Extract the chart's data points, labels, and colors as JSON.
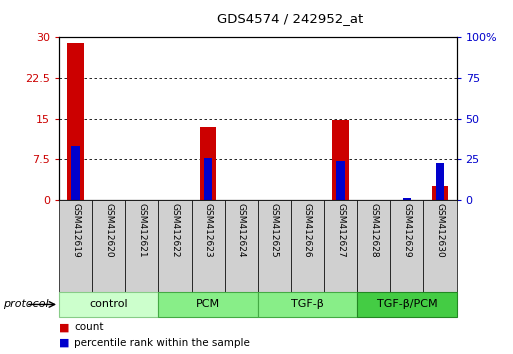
{
  "title": "GDS4574 / 242952_at",
  "samples": [
    "GSM412619",
    "GSM412620",
    "GSM412621",
    "GSM412622",
    "GSM412623",
    "GSM412624",
    "GSM412625",
    "GSM412626",
    "GSM412627",
    "GSM412628",
    "GSM412629",
    "GSM412630"
  ],
  "counts": [
    29.0,
    0.0,
    0.0,
    0.0,
    13.5,
    0.0,
    0.0,
    0.0,
    14.8,
    0.0,
    0.0,
    2.5
  ],
  "percentile_ranks": [
    33.0,
    0.0,
    0.0,
    0.0,
    26.0,
    0.0,
    0.0,
    0.0,
    24.0,
    0.0,
    1.5,
    23.0
  ],
  "count_color": "#cc0000",
  "percentile_color": "#0000cc",
  "ylim_left": [
    0,
    30
  ],
  "ylim_right": [
    0,
    100
  ],
  "yticks_left": [
    0,
    7.5,
    15,
    22.5,
    30
  ],
  "ytick_labels_left": [
    "0",
    "7.5",
    "15",
    "22.5",
    "30"
  ],
  "yticks_right": [
    0,
    25,
    50,
    75,
    100
  ],
  "ytick_labels_right": [
    "0",
    "25",
    "50",
    "75",
    "100%"
  ],
  "groups": [
    {
      "label": "control",
      "size": 3,
      "color": "#ccffcc",
      "edge_color": "#88cc88"
    },
    {
      "label": "PCM",
      "size": 3,
      "color": "#88ee88",
      "edge_color": "#44aa44"
    },
    {
      "label": "TGF-β",
      "size": 3,
      "color": "#88ee88",
      "edge_color": "#44aa44"
    },
    {
      "label": "TGF-β/PCM",
      "size": 3,
      "color": "#44cc44",
      "edge_color": "#228822"
    }
  ],
  "protocol_label": "protocol",
  "legend_count_label": "count",
  "legend_percentile_label": "percentile rank within the sample",
  "count_bar_width": 0.5,
  "percentile_bar_width": 0.25,
  "sample_box_color": "#d0d0d0"
}
